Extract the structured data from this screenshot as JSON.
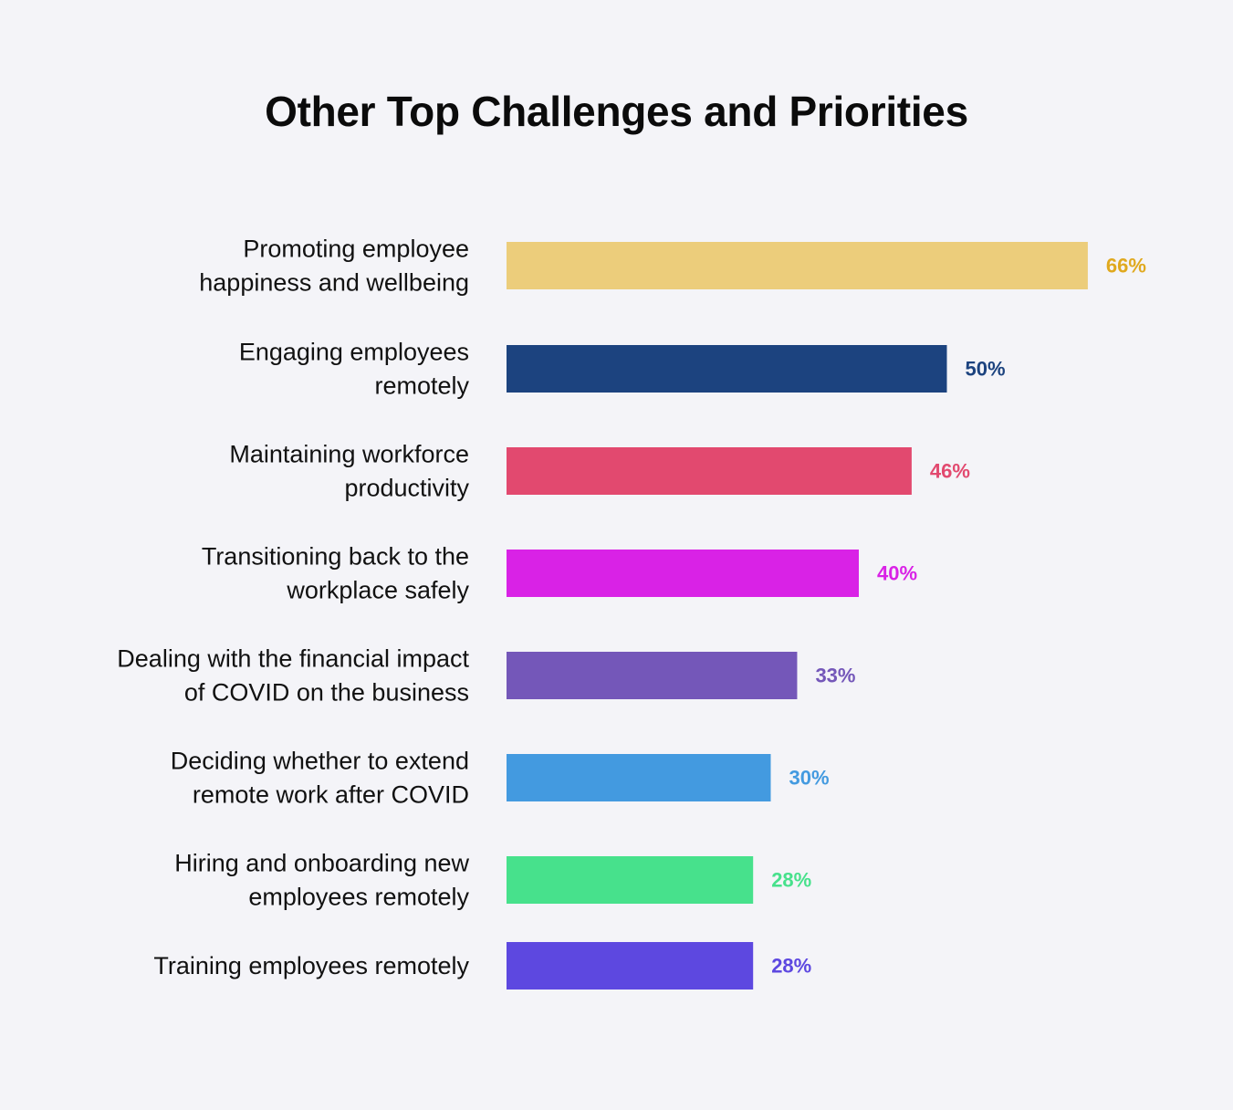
{
  "chart_data": {
    "type": "bar",
    "orientation": "horizontal",
    "title": "Other Top Challenges and Priorities",
    "categories": [
      [
        "Promoting employee",
        "happiness and wellbeing"
      ],
      [
        "Engaging employees",
        "remotely"
      ],
      [
        "Maintaining workforce",
        "productivity"
      ],
      [
        "Transitioning back to the",
        "workplace safely"
      ],
      [
        "Dealing with the financial impact",
        "of COVID on the business"
      ],
      [
        "Deciding whether to extend",
        "remote work after COVID"
      ],
      [
        "Hiring and onboarding new",
        "employees remotely"
      ],
      [
        "Training employees remotely"
      ]
    ],
    "values": [
      66,
      50,
      46,
      40,
      33,
      30,
      28,
      28
    ],
    "value_labels": [
      "66%",
      "50%",
      "46%",
      "40%",
      "33%",
      "30%",
      "28%",
      "28%"
    ],
    "bar_colors": [
      "#eccd7b",
      "#1c437f",
      "#e2496f",
      "#d922e6",
      "#7457b9",
      "#439ae0",
      "#47e18c",
      "#5d48e0"
    ],
    "label_colors": [
      "#e0a91e",
      "#1c437f",
      "#e2496f",
      "#d922e6",
      "#7457b9",
      "#439ae0",
      "#47e18c",
      "#5d48e0"
    ],
    "xlim": [
      0,
      100
    ],
    "grid": false,
    "legend": "none"
  }
}
